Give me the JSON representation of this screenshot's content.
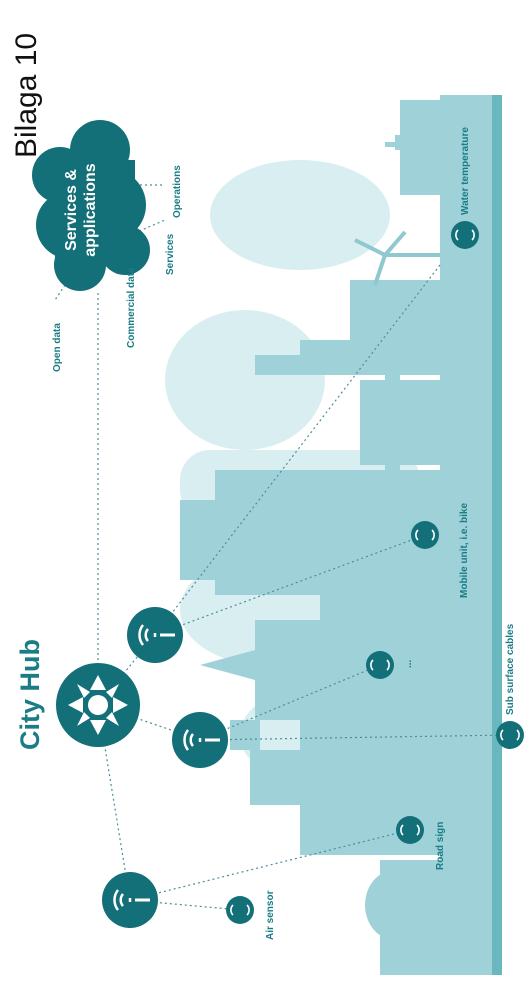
{
  "page_label": "Bilaga 10",
  "title": "City Hub",
  "cloud_text": [
    "Services &",
    "applications"
  ],
  "cloud_labels": {
    "open_data": "Open data",
    "commercial_data": "Commercial data",
    "services": "Services",
    "operations": "Operations"
  },
  "node_labels": {
    "air_sensor": "Air sensor",
    "road_sign": "Road sign",
    "ellipsis": "...",
    "mobile_unit": "Mobile unit, i.e. bike",
    "sub_surface": "Sub surface cables",
    "water_temp": "Water temperature"
  },
  "colors": {
    "teal_dark": "#136f78",
    "teal_label": "#1a7c85",
    "skyline": "#8ec9d0",
    "skyline_light": "#cfe9ec",
    "ground": "#5fb3bd"
  }
}
